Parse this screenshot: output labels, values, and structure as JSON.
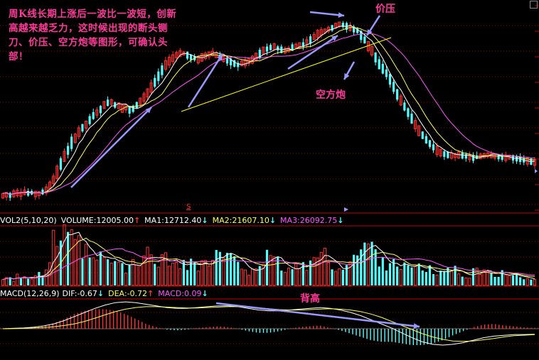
{
  "annotation": "周K线长期上涨后一波比一波短，创新高越来越乏力，这时候出现的断头铡刀、价压、空方炮等图形，可确认头部！",
  "labels": {
    "jiaya": "价压",
    "kongfangpao": "空方炮",
    "beigao": "背高",
    "marker": "S"
  },
  "volume_header": {
    "name": "VOL2(5,10,20)",
    "volume": "VOLUME:12005.00",
    "volume_arrow": "↑",
    "ma1": "MA1:12712.40",
    "ma1_arrow": "↓",
    "ma2": "MA2:21607.10",
    "ma2_arrow": "↓",
    "ma3": "MA3:26092.75",
    "ma3_arrow": "↓"
  },
  "macd_header": {
    "name": "MACD(12,26,9)",
    "dif": "DIF:-0.67",
    "dif_arrow": "↓",
    "dea": "DEA:-0.72",
    "dea_arrow": "↑",
    "macd": "MACD:0.09",
    "macd_arrow": "↓"
  },
  "colors": {
    "up": "#ff3232",
    "down": "#54ffff",
    "ma_short": "#ffffff",
    "ma_mid": "#ffff55",
    "ma_long": "#ff55ff",
    "trendline": "#ffff00",
    "arrows": "#9999ff",
    "annotation": "#ff3a9a",
    "grid": "#aa0000"
  },
  "chart_data": {
    "type": "candlestick",
    "title": "",
    "price_path": [
      1.0,
      1.6,
      1.2,
      2.2,
      2.8,
      2.0,
      3.2,
      2.6,
      3.0,
      2.1,
      2.4,
      3.5,
      4.8,
      7.8,
      11.5,
      16.5,
      22,
      27,
      31,
      36,
      39,
      43,
      46,
      48,
      51,
      54,
      56,
      58,
      61,
      62.5,
      63,
      61,
      60.5,
      58.5,
      59.5,
      57.5,
      58.5,
      61,
      63.5,
      66,
      69,
      72.5,
      76,
      80,
      84,
      87.5,
      90,
      92,
      94,
      95,
      95,
      94,
      92.5,
      92,
      91,
      92.5,
      93.5,
      94.5,
      95,
      94,
      92.5,
      91.5,
      90.5,
      89.5,
      88.5,
      87.5,
      88.5,
      89,
      90,
      91,
      93,
      95,
      97,
      98,
      99,
      99.5,
      98.5,
      97.5,
      97,
      97.5,
      99,
      100,
      100.5,
      101,
      102.5,
      104,
      106,
      108,
      109,
      110,
      111,
      112,
      113.5,
      114.5,
      114,
      113,
      112,
      111,
      110,
      107,
      104,
      100,
      97,
      92.5,
      88,
      85,
      82,
      78,
      73,
      68,
      64,
      60,
      56,
      52,
      48,
      44,
      41,
      38,
      35.5,
      33,
      31,
      29.5,
      28.5,
      28,
      27.5,
      27.5,
      28,
      27.5,
      27,
      26.5,
      26,
      26.5,
      27,
      27.5,
      28,
      27.5,
      27,
      26.5,
      26.5,
      26,
      26.5,
      26,
      25.5,
      25,
      24.5,
      24,
      23.5,
      23
    ],
    "volume_profile": [
      10,
      12,
      8,
      14,
      10,
      9,
      11,
      8,
      10,
      12,
      16,
      20,
      35,
      52,
      60,
      58,
      55,
      62,
      50,
      45,
      48,
      42,
      38,
      35,
      30,
      28,
      32,
      30,
      34,
      28,
      26,
      25,
      24,
      22,
      20,
      24,
      28,
      30,
      34,
      36,
      40,
      38,
      35,
      32,
      30,
      28,
      26,
      30,
      32,
      34,
      30,
      28,
      26,
      24,
      26,
      28,
      30,
      32,
      34,
      36,
      38,
      34,
      30,
      28,
      26,
      24,
      22,
      20,
      24,
      26,
      28,
      30,
      32,
      28,
      26,
      24,
      22,
      20,
      18,
      22,
      24,
      26,
      28,
      30,
      32,
      34,
      36,
      34,
      30,
      28,
      26,
      24,
      22,
      26,
      28,
      32,
      38,
      42,
      46,
      50,
      44,
      40,
      36,
      32,
      30,
      28,
      34,
      30,
      26,
      24,
      22,
      20,
      18,
      22,
      24,
      20,
      18,
      16,
      14,
      16,
      18,
      20,
      22,
      18,
      16,
      14,
      12,
      14,
      16,
      18,
      20,
      16,
      14,
      12,
      14,
      16,
      14,
      12,
      10,
      12,
      14,
      12,
      10,
      12,
      10,
      9
    ],
    "macd_dif": [
      0.0,
      0.05,
      0.1,
      0.2,
      0.35,
      0.6,
      1.0,
      1.5,
      2.0,
      2.5,
      2.9,
      3.2,
      3.3,
      3.2,
      3.0,
      2.8,
      2.6,
      2.5,
      2.5,
      2.6,
      2.7,
      2.8,
      2.8,
      2.7,
      2.5,
      2.3,
      2.2,
      2.2,
      2.3,
      2.4,
      2.5,
      2.6,
      2.5,
      2.3,
      2.0,
      1.6,
      1.1,
      0.6,
      0.1,
      -0.5,
      -1.1,
      -1.6,
      -1.9,
      -2.0,
      -1.9,
      -1.7,
      -1.4,
      -1.1,
      -0.9,
      -0.8,
      -0.7,
      -0.7,
      -0.67
    ],
    "macd_dea": [
      0.0,
      0.02,
      0.05,
      0.1,
      0.15,
      0.25,
      0.4,
      0.6,
      0.9,
      1.3,
      1.7,
      2.1,
      2.4,
      2.6,
      2.7,
      2.7,
      2.65,
      2.6,
      2.55,
      2.55,
      2.6,
      2.65,
      2.7,
      2.7,
      2.65,
      2.55,
      2.45,
      2.35,
      2.3,
      2.3,
      2.35,
      2.4,
      2.45,
      2.4,
      2.3,
      2.1,
      1.8,
      1.4,
      0.9,
      0.4,
      -0.1,
      -0.6,
      -1.0,
      -1.3,
      -1.5,
      -1.55,
      -1.5,
      -1.35,
      -1.2,
      -1.0,
      -0.85,
      -0.78,
      -0.72
    ]
  }
}
